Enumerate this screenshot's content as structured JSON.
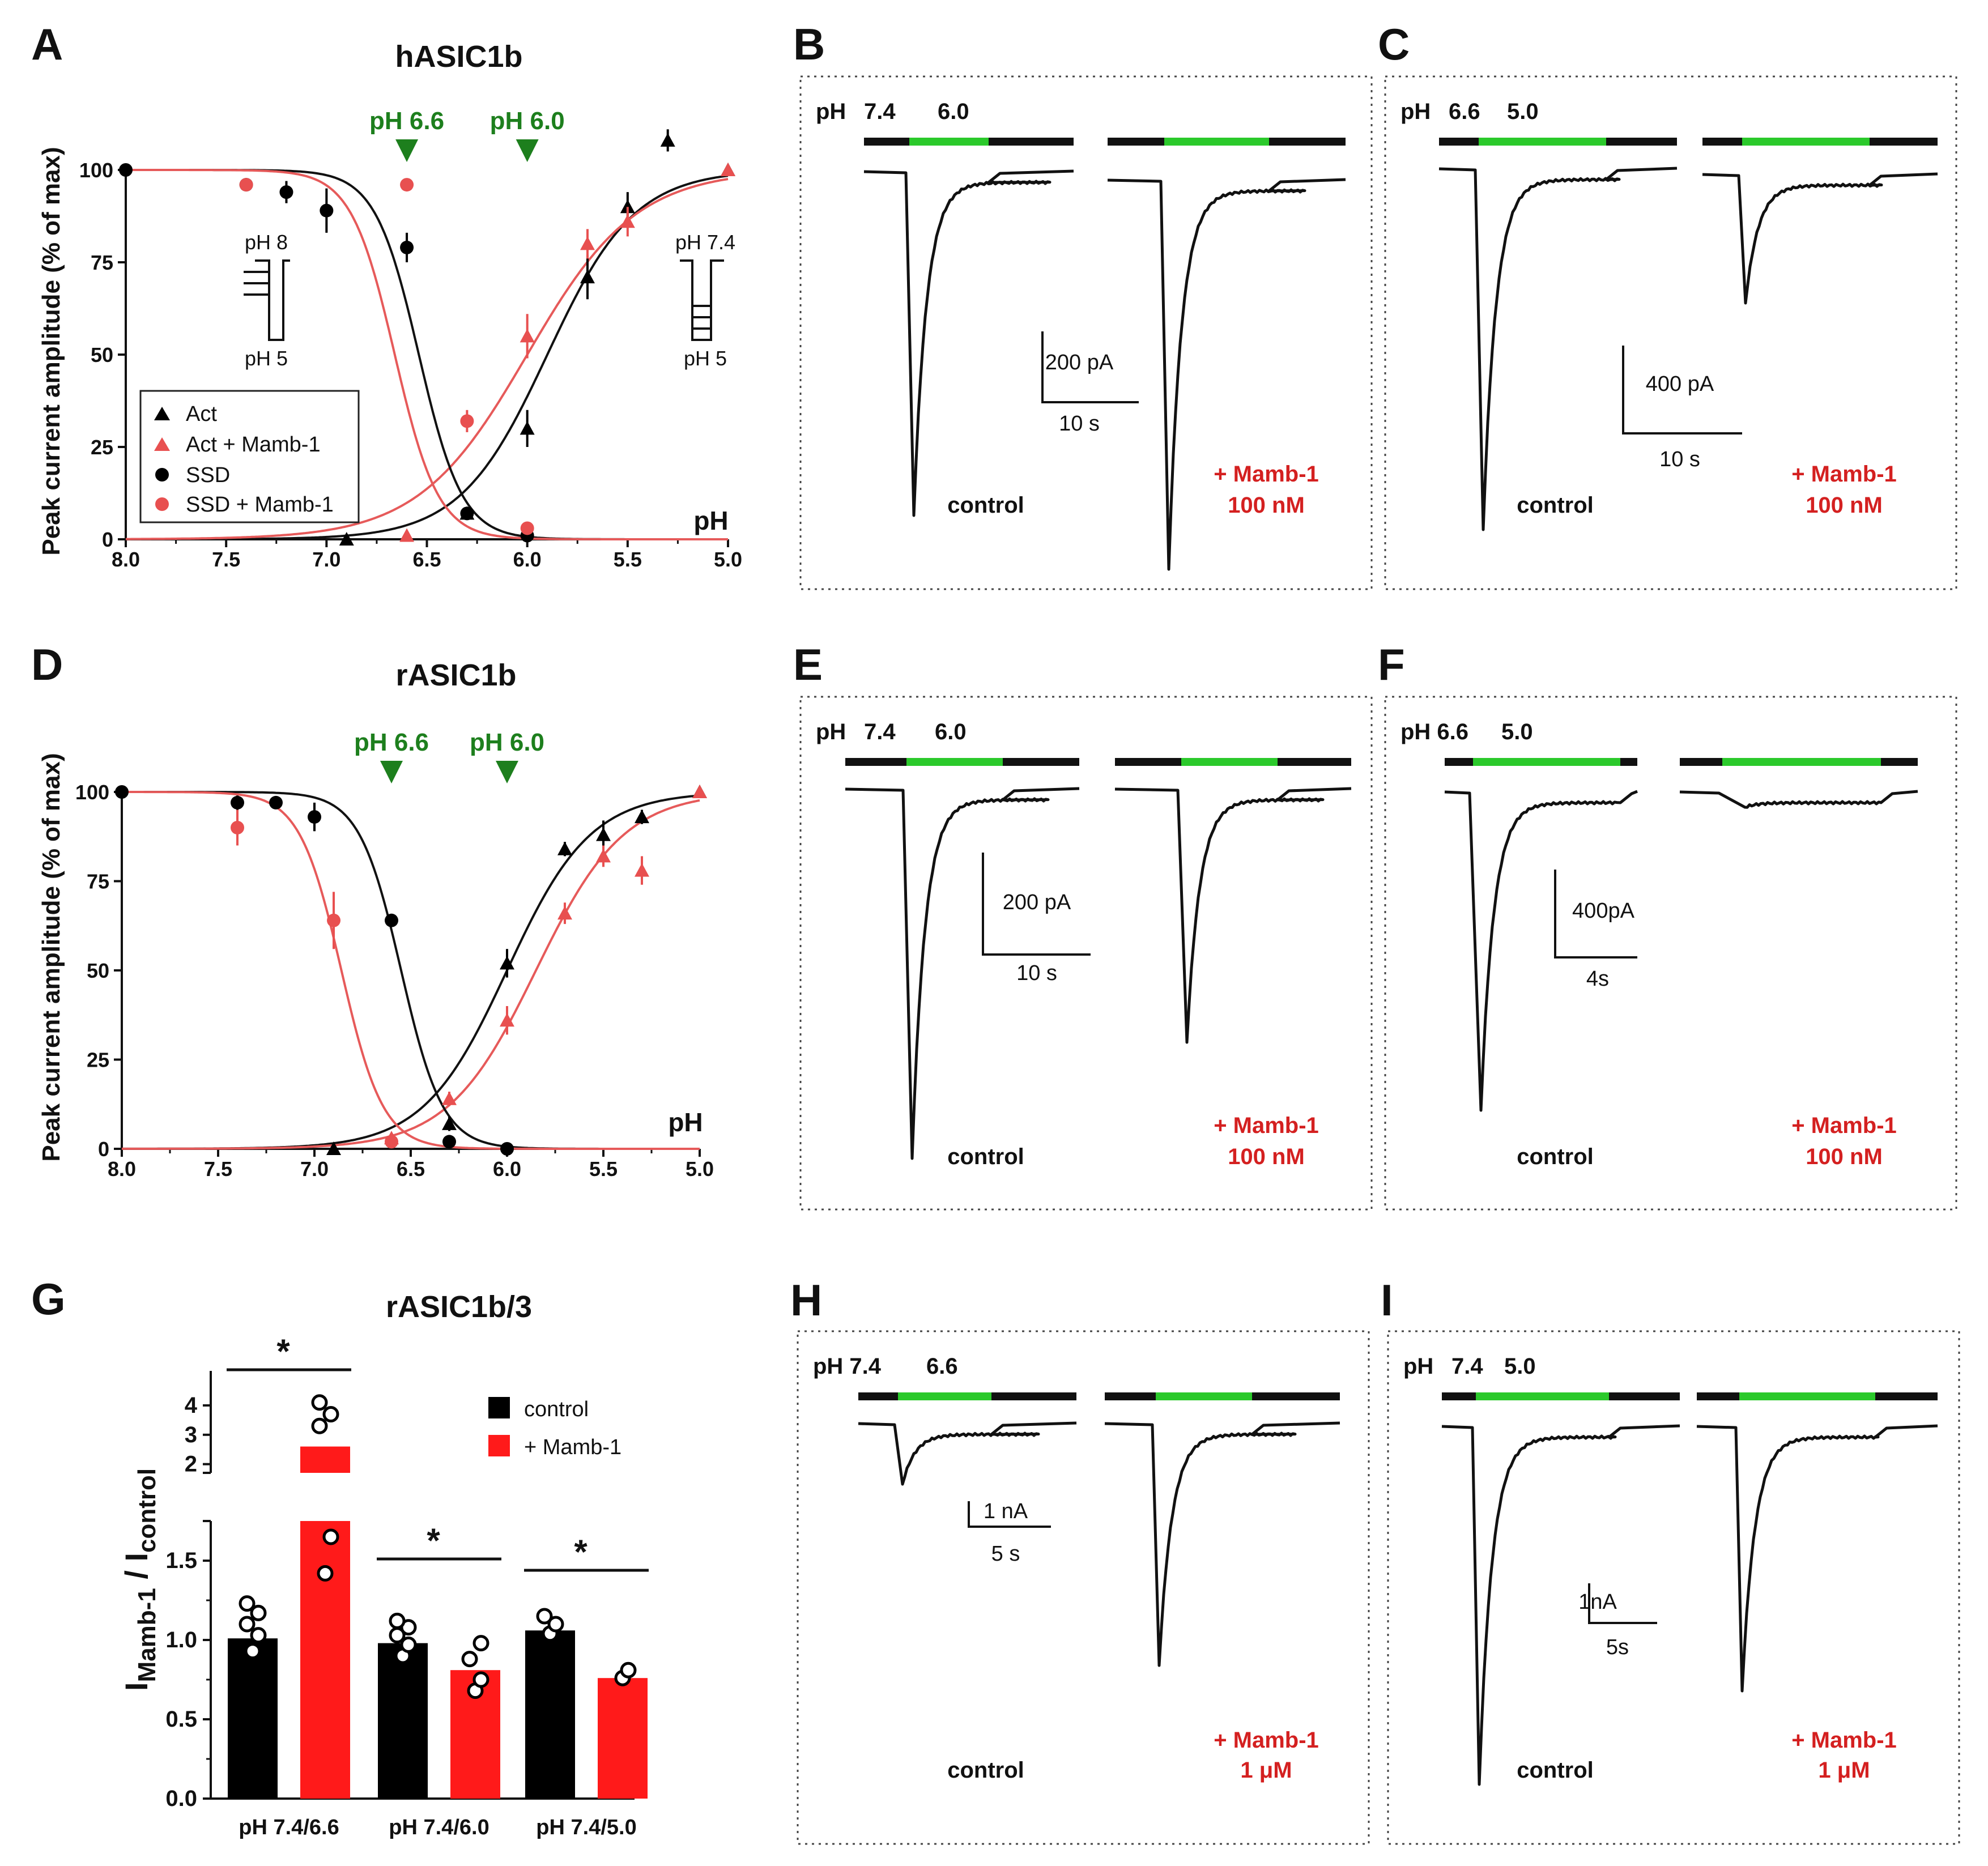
{
  "colors": {
    "black": "#000000",
    "red": "#e52421",
    "lightred": "#e85050",
    "green": "#1d7f1d",
    "solution_bar": "#2bc92b"
  },
  "chart_data": [
    {
      "panel": "A",
      "type": "scatter",
      "title": "hASIC1b",
      "xlabel": "pH",
      "ylabel": "Peak current amplitude (% of max)",
      "xlim": [
        8.0,
        5.0
      ],
      "ylim": [
        0,
        100
      ],
      "xticks": [
        "8.0",
        "7.5",
        "7.0",
        "6.5",
        "6.0",
        "5.5",
        "5.0"
      ],
      "yticks": [
        "0",
        "25",
        "50",
        "75",
        "100"
      ],
      "arrows": [
        {
          "label": "pH 6.6",
          "x": 6.6
        },
        {
          "label": "pH 6.0",
          "x": 6.0
        }
      ],
      "legend": [
        "Act",
        "Act + Mamb-1",
        "SSD",
        "SSD + Mamb-1"
      ],
      "protocol_left": {
        "top": "pH 8",
        "bottom": "pH 5"
      },
      "protocol_right": {
        "top": "pH 7.4",
        "bottom": "pH 5"
      },
      "series": [
        {
          "name": "Act",
          "marker": "triangle",
          "color": "#000000",
          "x": [
            6.9,
            6.3,
            6.0,
            5.7,
            5.5,
            5.3,
            5.0
          ],
          "y": [
            0,
            7,
            30,
            71,
            90,
            108,
            100
          ],
          "err": [
            0,
            1,
            5,
            6,
            4,
            3,
            0
          ],
          "fit": {
            "mid": 5.9,
            "n": 2.0
          }
        },
        {
          "name": "Act + Mamb-1",
          "marker": "triangle",
          "color": "#e85050",
          "x": [
            6.6,
            6.0,
            5.7,
            5.5,
            5.0
          ],
          "y": [
            1,
            55,
            80,
            86,
            100
          ],
          "err": [
            0,
            6,
            4,
            4,
            0
          ],
          "fit": {
            "mid": 6.0,
            "n": 1.6
          }
        },
        {
          "name": "SSD",
          "marker": "circle",
          "color": "#000000",
          "x": [
            8.0,
            7.4,
            7.2,
            7.0,
            6.6,
            6.3,
            6.0
          ],
          "y": [
            100,
            96,
            94,
            89,
            79,
            7,
            1
          ],
          "err": [
            0,
            1,
            3,
            6,
            4,
            0,
            0
          ],
          "fit": {
            "mid": 6.54,
            "n": 4.0
          }
        },
        {
          "name": "SSD + Mamb-1",
          "marker": "circle",
          "color": "#e85050",
          "x": [
            7.4,
            6.6,
            6.3,
            6.0
          ],
          "y": [
            96,
            96,
            32,
            3
          ],
          "err": [
            0,
            1,
            3,
            0
          ],
          "fit": {
            "mid": 6.66,
            "n": 4.0
          }
        }
      ]
    },
    {
      "panel": "D",
      "type": "scatter",
      "title": "rASIC1b",
      "xlabel": "pH",
      "ylabel": "Peak current amplitude (% of max)",
      "xlim": [
        8.0,
        5.0
      ],
      "ylim": [
        0,
        100
      ],
      "xticks": [
        "8.0",
        "7.5",
        "7.0",
        "6.5",
        "6.0",
        "5.5",
        "5.0"
      ],
      "yticks": [
        "0",
        "25",
        "50",
        "75",
        "100"
      ],
      "arrows": [
        {
          "label": "pH 6.6",
          "x": 6.6
        },
        {
          "label": "pH 6.0",
          "x": 6.0
        }
      ],
      "series": [
        {
          "name": "Act",
          "marker": "triangle",
          "color": "#000000",
          "x": [
            6.9,
            6.3,
            6.0,
            5.7,
            5.5,
            5.3,
            5.0
          ],
          "y": [
            0,
            7,
            52,
            84,
            88,
            93,
            100
          ],
          "err": [
            0,
            2,
            4,
            2,
            4,
            2,
            0
          ],
          "fit": {
            "mid": 6.0,
            "n": 2.0
          }
        },
        {
          "name": "Act + Mamb-1",
          "marker": "triangle",
          "color": "#e85050",
          "x": [
            6.6,
            6.3,
            6.0,
            5.7,
            5.5,
            5.3,
            5.0
          ],
          "y": [
            3,
            14,
            36,
            66,
            82,
            78,
            100
          ],
          "err": [
            0,
            2,
            4,
            3,
            3,
            4,
            0
          ],
          "fit": {
            "mid": 5.85,
            "n": 1.9
          }
        },
        {
          "name": "SSD",
          "marker": "circle",
          "color": "#000000",
          "x": [
            8.0,
            7.4,
            7.2,
            7.0,
            6.6,
            6.3,
            6.0
          ],
          "y": [
            100,
            97,
            97,
            93,
            64,
            2,
            0
          ],
          "err": [
            0,
            2,
            1,
            4,
            1,
            0,
            0
          ],
          "fit": {
            "mid": 6.55,
            "n": 4.0
          }
        },
        {
          "name": "SSD + Mamb-1",
          "marker": "circle",
          "color": "#e85050",
          "x": [
            7.4,
            6.9,
            6.6
          ],
          "y": [
            90,
            64,
            2
          ],
          "err": [
            5,
            8,
            0
          ],
          "fit": {
            "mid": 6.86,
            "n": 4.0
          }
        }
      ]
    },
    {
      "panel": "G",
      "type": "bar",
      "title": "rASIC1b/3",
      "ylabel_main": "I",
      "ylabel_sub1": "Mamb-1",
      "ylabel_sep": " / I",
      "ylabel_sub2": "control",
      "categories": [
        "pH 7.4/6.6",
        "pH 7.4/6.0",
        "pH 7.4/5.0"
      ],
      "yticks_low": [
        "0.0",
        "0.5",
        "1.0",
        "1.5"
      ],
      "yticks_high": [
        "2",
        "3",
        "4"
      ],
      "legend": [
        "control",
        "+ Mamb-1"
      ],
      "significance": "*",
      "series": [
        {
          "name": "control",
          "color": "#000000",
          "values": [
            1.01,
            0.98,
            1.06
          ],
          "points": [
            [
              0.93,
              1.03,
              1.1,
              1.17,
              1.23
            ],
            [
              0.9,
              0.97,
              1.03,
              1.08,
              1.12
            ],
            [
              1.04,
              1.1,
              1.15
            ]
          ]
        },
        {
          "name": "+ Mamb-1",
          "color": "#ff1a1a",
          "values": [
            2.6,
            0.81,
            0.76
          ],
          "points": [
            [
              1.42,
              1.65,
              3.3,
              3.7,
              4.1
            ],
            [
              0.68,
              0.75,
              0.88,
              0.98
            ],
            [
              0.76,
              0.81
            ]
          ]
        }
      ]
    }
  ],
  "traces": {
    "B": {
      "label": "B",
      "ph1": "7.4",
      "ph2": "6.0",
      "ph_prefix": "pH",
      "scale_y": "200 pA",
      "scale_x": "10 s",
      "control": "control",
      "drug": "+ Mamb-1",
      "conc": "100 nM"
    },
    "C": {
      "label": "C",
      "ph1": "6.6",
      "ph2": "5.0",
      "ph_prefix": "pH",
      "scale_y": "400 pA",
      "scale_x": "10 s",
      "control": "control",
      "drug": "+ Mamb-1",
      "conc": "100 nM"
    },
    "E": {
      "label": "E",
      "ph1": "7.4",
      "ph2": "6.0",
      "ph_prefix": "pH",
      "scale_y": "200 pA",
      "scale_x": "10 s",
      "control": "control",
      "drug": "+ Mamb-1",
      "conc": "100 nM"
    },
    "F": {
      "label": "F",
      "ph1": "pH 6.6",
      "ph2": "5.0",
      "scale_y": "400pA",
      "scale_x": "4s",
      "control": "control",
      "drug": "+ Mamb-1",
      "conc": "100 nM"
    },
    "H": {
      "label": "H",
      "ph1": "pH 7.4",
      "ph2": "6.6",
      "scale_y": "1 nA",
      "scale_x": "5 s",
      "control": "control",
      "drug": "+ Mamb-1",
      "conc": "1 μM"
    },
    "I": {
      "label": "I",
      "ph1": "7.4",
      "ph2": "5.0",
      "ph_prefix": "pH",
      "scale_y": "1nA",
      "scale_x": "5s",
      "control": "control",
      "drug": "+ Mamb-1",
      "conc": "1 μM"
    }
  }
}
